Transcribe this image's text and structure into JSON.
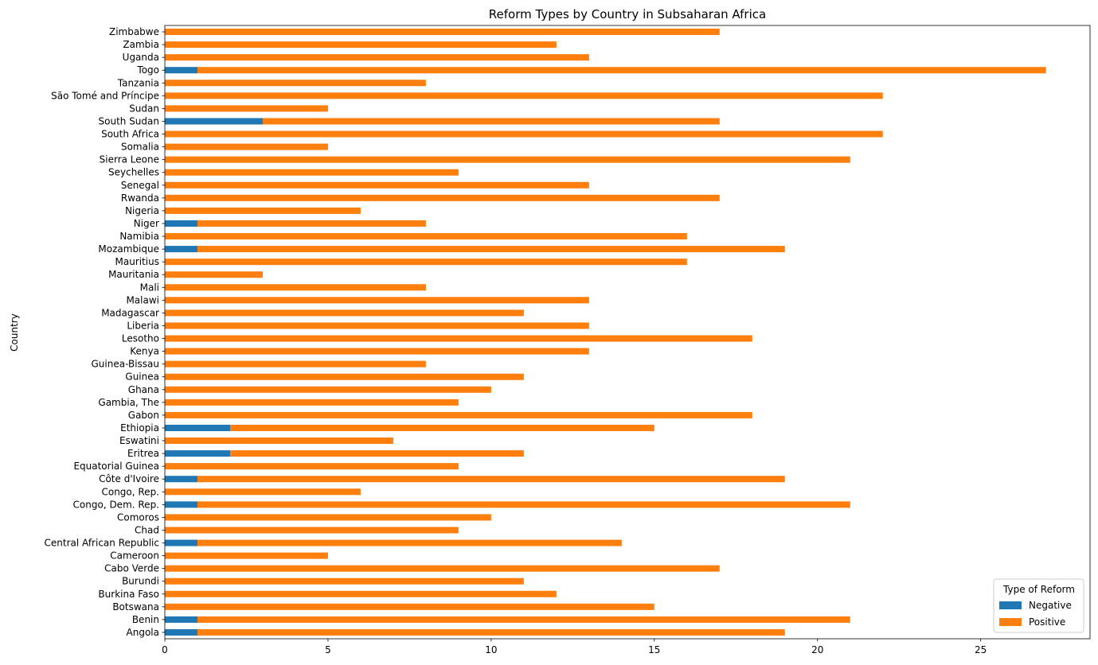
{
  "chart_data": {
    "type": "bar",
    "orientation": "horizontal",
    "stacked": true,
    "title": "Reform Types by Country in Subsaharan Africa",
    "xlabel": "",
    "ylabel": "Country",
    "xlim": [
      0,
      28.35
    ],
    "xticks": [
      "0",
      "5",
      "10",
      "15",
      "20",
      "25"
    ],
    "grid": false,
    "legend": {
      "title": "Type of Reform",
      "position": "lower-right",
      "entries": [
        "Negative",
        "Positive"
      ]
    },
    "categories": [
      "Angola",
      "Benin",
      "Botswana",
      "Burkina Faso",
      "Burundi",
      "Cabo Verde",
      "Cameroon",
      "Central African Republic",
      "Chad",
      "Comoros",
      "Congo, Dem. Rep.",
      "Congo, Rep.",
      "Côte d'Ivoire",
      "Equatorial Guinea",
      "Eritrea",
      "Eswatini",
      "Ethiopia",
      "Gabon",
      "Gambia, The",
      "Ghana",
      "Guinea",
      "Guinea-Bissau",
      "Kenya",
      "Lesotho",
      "Liberia",
      "Madagascar",
      "Malawi",
      "Mali",
      "Mauritania",
      "Mauritius",
      "Mozambique",
      "Namibia",
      "Niger",
      "Nigeria",
      "Rwanda",
      "Senegal",
      "Seychelles",
      "Sierra Leone",
      "Somalia",
      "South Africa",
      "South Sudan",
      "Sudan",
      "São Tomé and Príncipe",
      "Tanzania",
      "Togo",
      "Uganda",
      "Zambia",
      "Zimbabwe"
    ],
    "series": [
      {
        "name": "Negative",
        "color": "#1f77b4",
        "values": [
          1,
          1,
          0,
          0,
          0,
          0,
          0,
          1,
          0,
          0,
          1,
          0,
          1,
          0,
          2,
          0,
          2,
          0,
          0,
          0,
          0,
          0,
          0,
          0,
          0,
          0,
          0,
          0,
          0,
          0,
          1,
          0,
          1,
          0,
          0,
          0,
          0,
          0,
          0,
          0,
          3,
          0,
          0,
          0,
          1,
          0,
          0,
          0
        ]
      },
      {
        "name": "Positive",
        "color": "#ff7f0e",
        "values": [
          18,
          20,
          15,
          12,
          11,
          17,
          5,
          13,
          9,
          10,
          20,
          6,
          18,
          9,
          9,
          7,
          13,
          18,
          9,
          10,
          11,
          8,
          13,
          18,
          13,
          11,
          13,
          8,
          3,
          16,
          18,
          16,
          7,
          6,
          17,
          13,
          9,
          21,
          5,
          22,
          14,
          5,
          22,
          8,
          26,
          13,
          12,
          17
        ]
      }
    ]
  }
}
